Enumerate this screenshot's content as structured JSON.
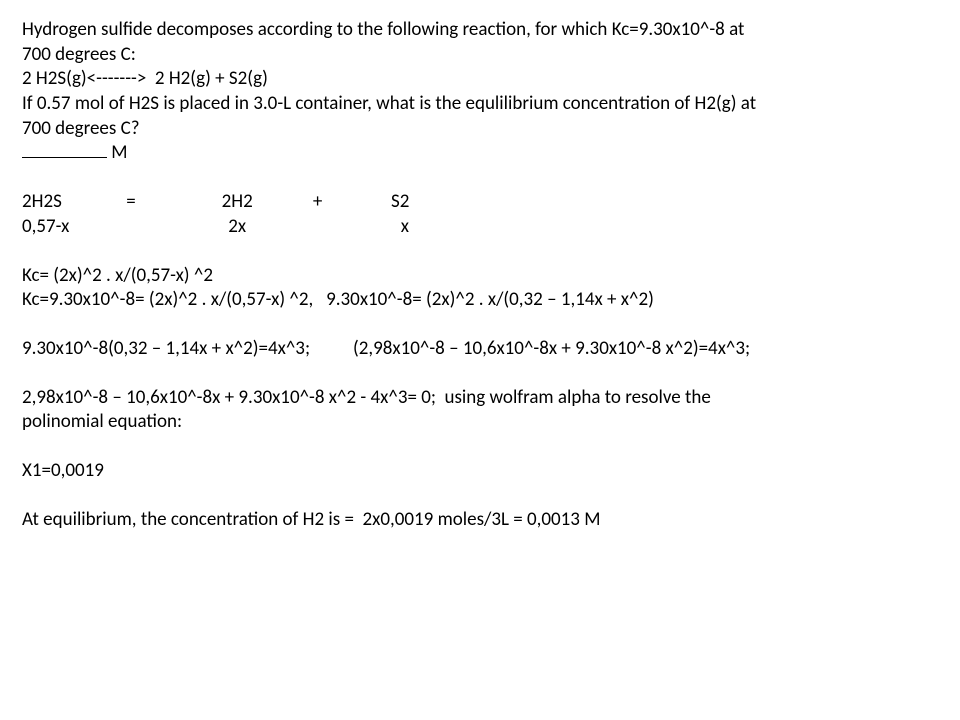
{
  "problem": {
    "line1": "Hydrogen sulfide decomposes according to the following reaction, for which Kc=9.30x10^-8 at",
    "line2": "700 degrees C:",
    "line3": "2 H2S(g)<------->  2 H2(g) + S2(g)",
    "line4": "If 0.57 mol of H2S is placed in 3.0-L container, what is the equlilibrium concentration of H2(g) at",
    "line5": "700 degrees C?",
    "unit": " M"
  },
  "ice": {
    "header": "2H2S               =                    2H2              +                S2",
    "row": "0,57-x                                     2x                                    x"
  },
  "work": {
    "kc1": "Kc= (2x)^2 . x/(0,57-x) ^2",
    "kc2": "Kc=9.30x10^-8= (2x)^2 . x/(0,57-x) ^2,   9.30x10^-8= (2x)^2 . x/(0,32 – 1,14x + x^2)",
    "step1": "9.30x10^-8(0,32 – 1,14x + x^2)=4x^3;          (2,98x10^-8 – 10,6x10^-8x + 9.30x10^-8 x^2)=4x^3;",
    "step2a": "2,98x10^-8 – 10,6x10^-8x + 9.30x10^-8 x^2 - 4x^3= 0;  using wolfram alpha to resolve the",
    "step2b": "polinomial equation:",
    "x1": "X1=0,0019",
    "answer": "At equilibrium, the concentration of H2 is =  2x0,0019 moles/3L = 0,0013 M"
  }
}
